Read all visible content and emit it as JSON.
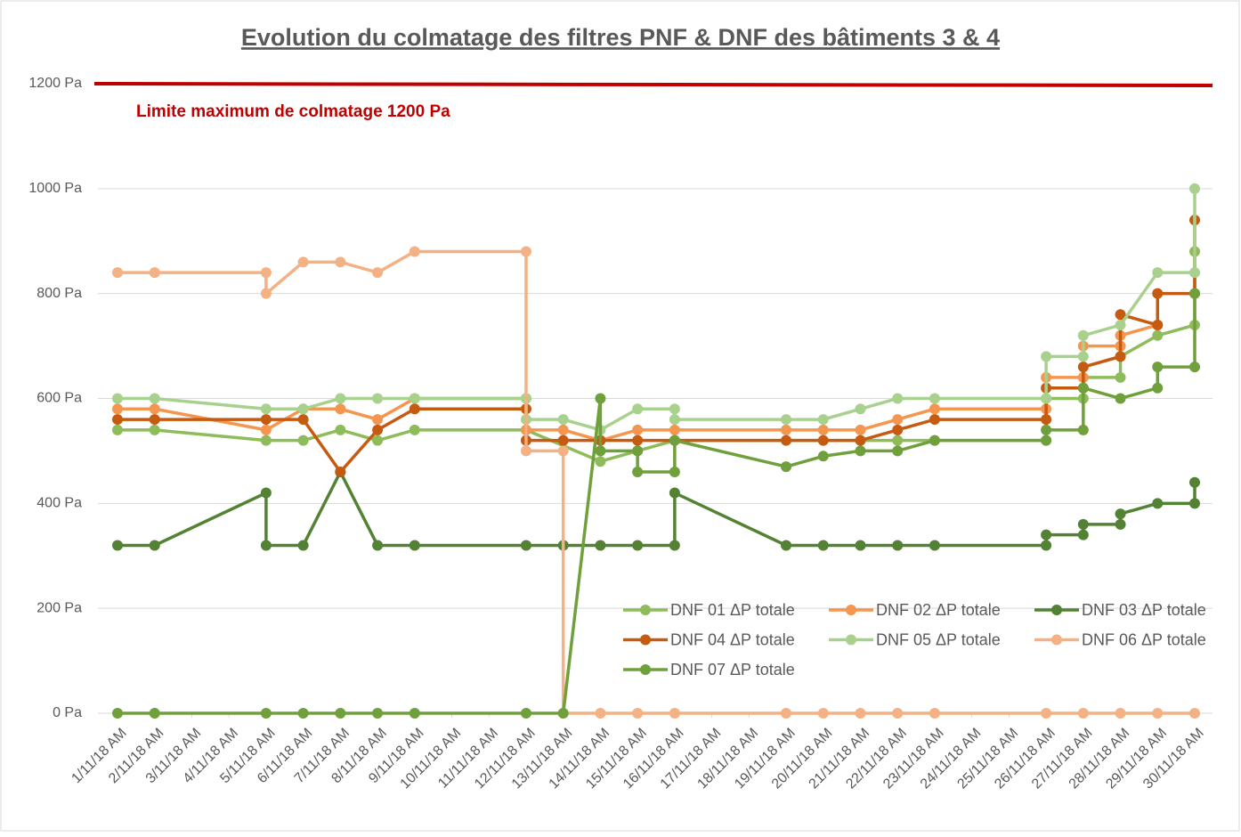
{
  "chart_data": {
    "type": "line",
    "title": "Evolution du colmatage des filtres PNF & DNF des bâtiments 3 & 4",
    "limit": {
      "value": 1200,
      "label": "Limite maximum de colmatage 1200 Pa",
      "color": "#c00000"
    },
    "xlim": [
      1,
      30
    ],
    "xticks": [
      {
        "value": 1,
        "label": "1/11/18 AM"
      },
      {
        "value": 2,
        "label": "2/11/18 AM"
      },
      {
        "value": 3,
        "label": "3/11/18 AM"
      },
      {
        "value": 4,
        "label": "4/11/18 AM"
      },
      {
        "value": 5,
        "label": "5/11/18 AM"
      },
      {
        "value": 6,
        "label": "6/11/18 AM"
      },
      {
        "value": 7,
        "label": "7/11/18 AM"
      },
      {
        "value": 8,
        "label": "8/11/18 AM"
      },
      {
        "value": 9,
        "label": "9/11/18 AM"
      },
      {
        "value": 10,
        "label": "10/11/18 AM"
      },
      {
        "value": 11,
        "label": "11/11/18 AM"
      },
      {
        "value": 12,
        "label": "12/11/18 AM"
      },
      {
        "value": 13,
        "label": "13/11/18 AM"
      },
      {
        "value": 14,
        "label": "14/11/18 AM"
      },
      {
        "value": 15,
        "label": "15/11/18 AM"
      },
      {
        "value": 16,
        "label": "16/11/18 AM"
      },
      {
        "value": 17,
        "label": "17/11/18 AM"
      },
      {
        "value": 18,
        "label": "18/11/18 AM"
      },
      {
        "value": 19,
        "label": "19/11/18 AM"
      },
      {
        "value": 20,
        "label": "20/11/18 AM"
      },
      {
        "value": 21,
        "label": "21/11/18 AM"
      },
      {
        "value": 22,
        "label": "22/11/18 AM"
      },
      {
        "value": 23,
        "label": "23/11/18 AM"
      },
      {
        "value": 24,
        "label": "24/11/18 AM"
      },
      {
        "value": 25,
        "label": "25/11/18 AM"
      },
      {
        "value": 26,
        "label": "26/11/18 AM"
      },
      {
        "value": 27,
        "label": "27/11/18 AM"
      },
      {
        "value": 28,
        "label": "28/11/18 AM"
      },
      {
        "value": 29,
        "label": "29/11/18 AM"
      },
      {
        "value": 30,
        "label": "30/11/18 AM"
      }
    ],
    "ylim": [
      0,
      1200
    ],
    "yticks": [
      {
        "value": 0,
        "label": "0 Pa"
      },
      {
        "value": 200,
        "label": "200 Pa"
      },
      {
        "value": 400,
        "label": "400 Pa"
      },
      {
        "value": 600,
        "label": "600 Pa"
      },
      {
        "value": 800,
        "label": "800 Pa"
      },
      {
        "value": 1000,
        "label": "1000 Pa"
      },
      {
        "value": 1200,
        "label": "1200 Pa"
      }
    ],
    "grid": true,
    "series": [
      {
        "name": "DNF 01 ΔP totale",
        "color": "#8fbc5a",
        "x": [
          1,
          2,
          5,
          6,
          7,
          8,
          9,
          12,
          14,
          15,
          16,
          22,
          23,
          26,
          26,
          27,
          27,
          28,
          28,
          29,
          30,
          30
        ],
        "values": [
          540,
          540,
          520,
          520,
          540,
          520,
          540,
          540,
          480,
          500,
          520,
          520,
          520,
          520,
          600,
          600,
          640,
          640,
          680,
          720,
          740,
          880
        ]
      },
      {
        "name": "DNF 02 ΔP totale",
        "color": "#f4964f",
        "x": [
          1,
          2,
          5,
          6,
          7,
          8,
          9,
          12,
          12,
          13,
          14,
          15,
          16,
          19,
          20,
          21,
          22,
          23,
          26,
          26,
          27,
          27,
          28,
          28,
          29
        ],
        "values": [
          580,
          580,
          540,
          580,
          580,
          560,
          600,
          600,
          540,
          540,
          520,
          540,
          540,
          540,
          540,
          540,
          560,
          580,
          580,
          640,
          640,
          700,
          700,
          720,
          740
        ]
      },
      {
        "name": "DNF 03 ΔP totale",
        "color": "#548235",
        "x": [
          1,
          2,
          5,
          5,
          6,
          7,
          8,
          9,
          12,
          13,
          14,
          15,
          16,
          16,
          19,
          20,
          21,
          22,
          23,
          26,
          26,
          27,
          27,
          28,
          28,
          29,
          30,
          30
        ],
        "values": [
          320,
          320,
          420,
          320,
          320,
          460,
          320,
          320,
          320,
          320,
          320,
          320,
          320,
          420,
          320,
          320,
          320,
          320,
          320,
          320,
          340,
          340,
          360,
          360,
          380,
          400,
          400,
          440
        ]
      },
      {
        "name": "DNF 04 ΔP totale",
        "color": "#c55a11",
        "x": [
          1,
          2,
          5,
          6,
          7,
          8,
          9,
          12,
          12,
          13,
          14,
          15,
          16,
          19,
          20,
          21,
          22,
          23,
          26,
          26,
          27,
          27,
          28,
          28,
          29,
          29,
          30,
          30
        ],
        "values": [
          560,
          560,
          560,
          560,
          460,
          540,
          580,
          580,
          520,
          520,
          520,
          520,
          520,
          520,
          520,
          520,
          540,
          560,
          560,
          620,
          620,
          660,
          680,
          760,
          740,
          800,
          800,
          940
        ]
      },
      {
        "name": "DNF 05 ΔP totale",
        "color": "#a9d18e",
        "x": [
          1,
          2,
          5,
          6,
          7,
          8,
          9,
          12,
          12,
          13,
          14,
          15,
          16,
          16,
          19,
          20,
          21,
          22,
          23,
          26,
          26,
          27,
          27,
          28,
          29,
          30,
          30
        ],
        "values": [
          600,
          600,
          580,
          580,
          600,
          600,
          600,
          600,
          560,
          560,
          540,
          580,
          580,
          560,
          560,
          560,
          580,
          600,
          600,
          600,
          680,
          680,
          720,
          740,
          840,
          840,
          1000
        ]
      },
      {
        "name": "DNF 06 ΔP totale",
        "color": "#f4b183",
        "x": [
          1,
          2,
          5,
          5,
          6,
          7,
          8,
          9,
          12,
          12,
          13,
          13,
          14,
          15,
          16,
          19,
          20,
          21,
          22,
          23,
          26,
          27,
          28,
          29,
          30
        ],
        "values": [
          840,
          840,
          840,
          800,
          860,
          860,
          840,
          880,
          880,
          500,
          500,
          0,
          0,
          0,
          0,
          0,
          0,
          0,
          0,
          0,
          0,
          0,
          0,
          0,
          0
        ]
      },
      {
        "name": "DNF 07 ΔP totale",
        "color": "#70a03c",
        "x": [
          1,
          2,
          5,
          6,
          7,
          8,
          9,
          12,
          13,
          14,
          14,
          15,
          15,
          16,
          16,
          19,
          20,
          21,
          22,
          23,
          26,
          26,
          27,
          27,
          28,
          29,
          29,
          30,
          30
        ],
        "values": [
          0,
          0,
          0,
          0,
          0,
          0,
          0,
          0,
          0,
          600,
          500,
          500,
          460,
          460,
          520,
          470,
          490,
          500,
          500,
          520,
          520,
          540,
          540,
          620,
          600,
          620,
          660,
          660,
          800
        ]
      }
    ]
  }
}
